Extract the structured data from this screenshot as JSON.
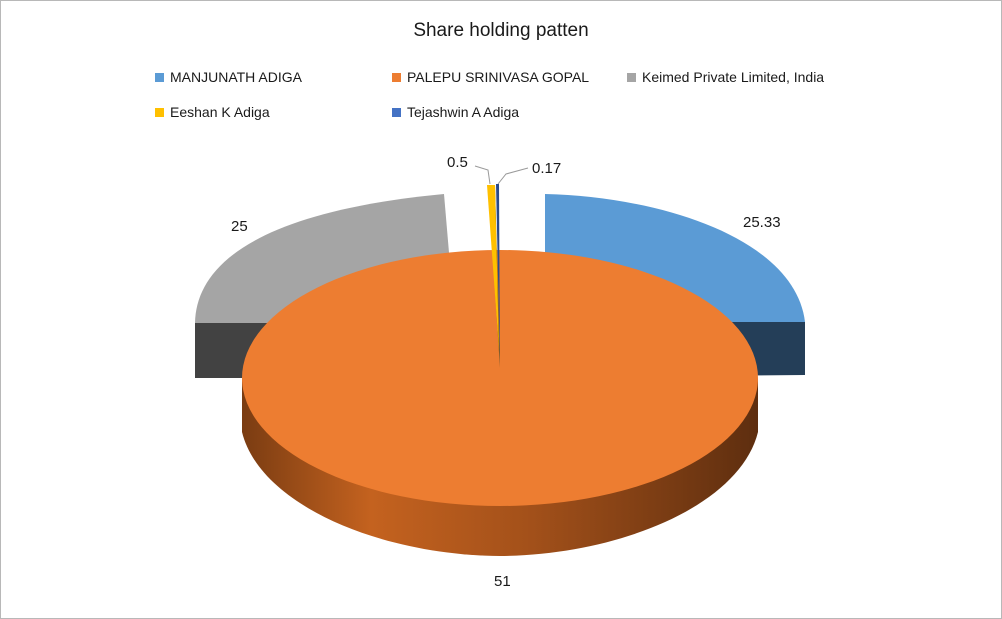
{
  "chart_data": {
    "type": "pie",
    "title": "Share holding patten",
    "legend_position": "top",
    "exploded": true,
    "three_d": true,
    "slices": [
      {
        "name": "MANJUNATH ADIGA",
        "value": 25.33,
        "label": "25.33",
        "color": "#5B9BD5"
      },
      {
        "name": "PALEPU SRINIVASA GOPAL",
        "value": 51,
        "label": "51",
        "color": "#ED7D31"
      },
      {
        "name": "Keimed Private Limited, India",
        "value": 25,
        "label": "25",
        "color": "#A5A5A5"
      },
      {
        "name": "Eeshan K Adiga",
        "value": 0.5,
        "label": "0.5",
        "color": "#FFC000"
      },
      {
        "name": "Tejashwin A Adiga",
        "value": 0.17,
        "label": "0.17",
        "color": "#4472C4"
      }
    ]
  }
}
